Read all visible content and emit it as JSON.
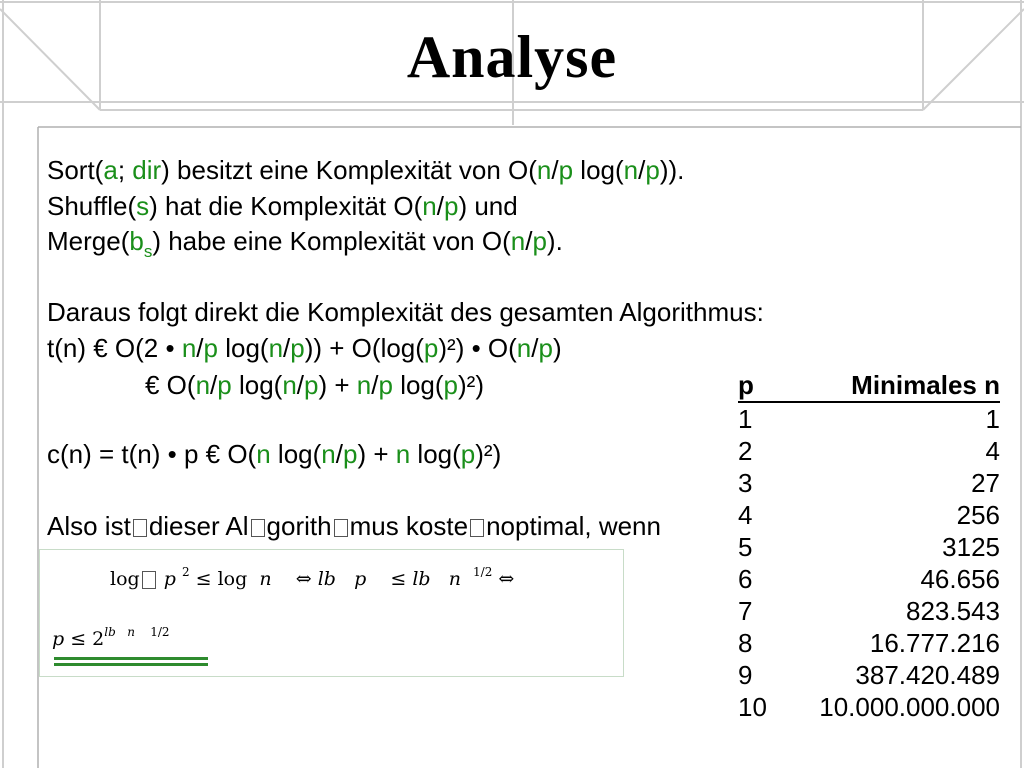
{
  "slide": {
    "title": "Analyse",
    "lines": {
      "l1_a": "Sort(",
      "l1_b": "a",
      "l1_c": "; ",
      "l1_d": "dir",
      "l1_e": ") besitzt eine Komplexität von O(",
      "l1_f": "n",
      "l1_g": "/",
      "l1_h": "p",
      "l1_i": " log(",
      "l1_j": "n",
      "l1_k": "/",
      "l1_l": "p",
      "l1_m": ")).",
      "l2_a": "Shuffle(",
      "l2_b": "s",
      "l2_c": ") hat die Komplexität O(",
      "l2_d": "n",
      "l2_e": "/",
      "l2_f": "p",
      "l2_g": ") und",
      "l3_a": "Merge(",
      "l3_b": "b",
      "l3_sub": "s",
      "l3_c": ") habe eine Komplexität von O(",
      "l3_d": "n",
      "l3_e": "/",
      "l3_f": "p",
      "l3_g": ").",
      "l4": "Daraus folgt direkt die Komplexität des gesamten Algorithmus:",
      "l5_a": "t(n) € O(2 • ",
      "l5_b": "n",
      "l5_c": "/",
      "l5_d": "p",
      "l5_e": " log(",
      "l5_f": "n",
      "l5_g": "/",
      "l5_h": "p",
      "l5_i": ")) + O(log(",
      "l5_j": "p",
      "l5_k": ")²) • O(",
      "l5_l": "n",
      "l5_m": "/",
      "l5_n": "p",
      "l5_o": ")",
      "l6_a": "€ O(",
      "l6_b": "n",
      "l6_c": "/",
      "l6_d": "p",
      "l6_e": " log(",
      "l6_f": "n",
      "l6_g": "/",
      "l6_h": "p",
      "l6_i": ") + ",
      "l6_j": "n",
      "l6_k": "/",
      "l6_l": "p",
      "l6_m": " log(",
      "l6_n": "p",
      "l6_o": ")²)",
      "l7_a": "c(n) = t(n) • p € O(",
      "l7_b": "n",
      "l7_c": " log(",
      "l7_d": "n",
      "l7_e": "/",
      "l7_f": "p",
      "l7_g": ") + ",
      "l7_h": "n",
      "l7_i": " log(",
      "l7_j": "p",
      "l7_k": ")²)",
      "l8_a": "Also ist",
      "l8_b": "dieser Al",
      "l8_c": "gorith",
      "l8_d": "mus koste",
      "l8_e": "noptimal, wenn"
    },
    "formula": {
      "f1_a": "log",
      "f1_b": "𝑝",
      "f1_sup1": "2",
      "f1_c": " ≤ log  𝑛    ⇔ 𝑙𝑏   𝑝    ≤ 𝑙𝑏   𝑛  ",
      "f1_sup2": "1/2",
      "f1_d": " ⇔",
      "f2_a": "𝑝 ≤ 2",
      "f2_sup": "𝑙𝑏   𝑛    1/2"
    },
    "table": {
      "headers": [
        "p",
        "Minimales n"
      ],
      "rows": [
        [
          "1",
          "1"
        ],
        [
          "2",
          "4"
        ],
        [
          "3",
          "27"
        ],
        [
          "4",
          "256"
        ],
        [
          "5",
          "3125"
        ],
        [
          "6",
          "46.656"
        ],
        [
          "7",
          "823.543"
        ],
        [
          "8",
          "16.777.216"
        ],
        [
          "9",
          "387.420.489"
        ],
        [
          "10",
          "10.000.000.000"
        ]
      ]
    },
    "colors": {
      "accent": "#1a8f1a",
      "frame": "#c8c8c8"
    }
  }
}
